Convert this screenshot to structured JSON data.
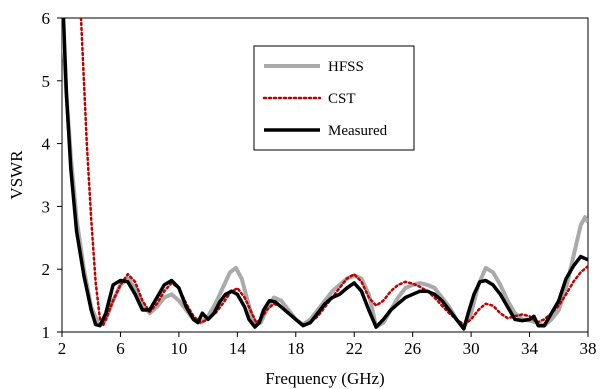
{
  "chart_data": {
    "type": "line",
    "xlabel": "Frequency (GHz)",
    "ylabel": "VSWR",
    "xlim": [
      2,
      38
    ],
    "ylim": [
      1,
      6
    ],
    "x_ticks": [
      2,
      6,
      10,
      14,
      18,
      22,
      26,
      30,
      34,
      38
    ],
    "y_ticks": [
      1,
      2,
      3,
      4,
      5,
      6
    ],
    "grid": false,
    "legend": "upper-center",
    "series": [
      {
        "name": "HFSS",
        "color": "#aaaaaa",
        "style": "solid",
        "points": [
          [
            2.0,
            6.0
          ],
          [
            2.3,
            4.8
          ],
          [
            2.6,
            3.8
          ],
          [
            3.0,
            2.8
          ],
          [
            3.5,
            2.0
          ],
          [
            4.0,
            1.4
          ],
          [
            4.5,
            1.12
          ],
          [
            5.0,
            1.2
          ],
          [
            5.5,
            1.5
          ],
          [
            6.0,
            1.75
          ],
          [
            6.5,
            1.85
          ],
          [
            7.0,
            1.7
          ],
          [
            7.5,
            1.45
          ],
          [
            8.0,
            1.3
          ],
          [
            8.5,
            1.4
          ],
          [
            9.0,
            1.55
          ],
          [
            9.5,
            1.6
          ],
          [
            10.0,
            1.5
          ],
          [
            10.5,
            1.35
          ],
          [
            11.0,
            1.2
          ],
          [
            11.5,
            1.15
          ],
          [
            12.0,
            1.25
          ],
          [
            12.5,
            1.45
          ],
          [
            13.0,
            1.7
          ],
          [
            13.5,
            1.95
          ],
          [
            13.9,
            2.02
          ],
          [
            14.3,
            1.85
          ],
          [
            14.7,
            1.5
          ],
          [
            15.0,
            1.25
          ],
          [
            15.3,
            1.12
          ],
          [
            15.6,
            1.15
          ],
          [
            16.0,
            1.35
          ],
          [
            16.5,
            1.55
          ],
          [
            17.0,
            1.5
          ],
          [
            17.5,
            1.35
          ],
          [
            18.0,
            1.2
          ],
          [
            18.5,
            1.12
          ],
          [
            19.0,
            1.2
          ],
          [
            19.5,
            1.35
          ],
          [
            20.0,
            1.5
          ],
          [
            20.5,
            1.65
          ],
          [
            21.0,
            1.75
          ],
          [
            21.5,
            1.85
          ],
          [
            22.0,
            1.9
          ],
          [
            22.5,
            1.85
          ],
          [
            23.0,
            1.6
          ],
          [
            23.3,
            1.3
          ],
          [
            23.5,
            1.08
          ],
          [
            24.0,
            1.15
          ],
          [
            24.5,
            1.35
          ],
          [
            25.0,
            1.55
          ],
          [
            25.5,
            1.7
          ],
          [
            26.0,
            1.75
          ],
          [
            26.5,
            1.78
          ],
          [
            27.0,
            1.75
          ],
          [
            27.5,
            1.7
          ],
          [
            28.0,
            1.55
          ],
          [
            28.5,
            1.4
          ],
          [
            29.0,
            1.2
          ],
          [
            29.5,
            1.07
          ],
          [
            30.0,
            1.3
          ],
          [
            30.5,
            1.75
          ],
          [
            31.0,
            2.02
          ],
          [
            31.5,
            1.95
          ],
          [
            32.0,
            1.75
          ],
          [
            32.5,
            1.5
          ],
          [
            33.0,
            1.3
          ],
          [
            33.5,
            1.2
          ],
          [
            34.0,
            1.18
          ],
          [
            34.5,
            1.15
          ],
          [
            35.0,
            1.1
          ],
          [
            35.5,
            1.2
          ],
          [
            36.0,
            1.35
          ],
          [
            36.5,
            1.7
          ],
          [
            37.0,
            2.2
          ],
          [
            37.5,
            2.7
          ],
          [
            37.8,
            2.83
          ],
          [
            38.0,
            2.75
          ]
        ]
      },
      {
        "name": "CST",
        "color": "#c00000",
        "style": "dotted",
        "points": [
          [
            3.3,
            6.0
          ],
          [
            3.5,
            5.0
          ],
          [
            3.7,
            4.0
          ],
          [
            4.0,
            2.8
          ],
          [
            4.3,
            1.8
          ],
          [
            4.6,
            1.2
          ],
          [
            4.8,
            1.1
          ],
          [
            5.0,
            1.2
          ],
          [
            5.5,
            1.5
          ],
          [
            6.0,
            1.75
          ],
          [
            6.5,
            1.92
          ],
          [
            7.0,
            1.8
          ],
          [
            7.5,
            1.5
          ],
          [
            8.0,
            1.32
          ],
          [
            8.5,
            1.45
          ],
          [
            9.0,
            1.65
          ],
          [
            9.5,
            1.78
          ],
          [
            10.0,
            1.7
          ],
          [
            10.5,
            1.45
          ],
          [
            11.0,
            1.25
          ],
          [
            11.5,
            1.15
          ],
          [
            12.0,
            1.2
          ],
          [
            12.5,
            1.3
          ],
          [
            13.0,
            1.45
          ],
          [
            13.5,
            1.62
          ],
          [
            14.0,
            1.7
          ],
          [
            14.5,
            1.55
          ],
          [
            15.0,
            1.3
          ],
          [
            15.3,
            1.15
          ],
          [
            15.6,
            1.2
          ],
          [
            16.0,
            1.35
          ],
          [
            16.5,
            1.45
          ],
          [
            17.0,
            1.4
          ],
          [
            17.5,
            1.3
          ],
          [
            18.0,
            1.2
          ],
          [
            18.5,
            1.12
          ],
          [
            19.0,
            1.15
          ],
          [
            19.5,
            1.25
          ],
          [
            20.0,
            1.4
          ],
          [
            20.5,
            1.55
          ],
          [
            21.0,
            1.7
          ],
          [
            21.5,
            1.85
          ],
          [
            22.0,
            1.92
          ],
          [
            22.5,
            1.8
          ],
          [
            23.0,
            1.55
          ],
          [
            23.5,
            1.42
          ],
          [
            24.0,
            1.5
          ],
          [
            24.5,
            1.65
          ],
          [
            25.0,
            1.75
          ],
          [
            25.5,
            1.8
          ],
          [
            26.0,
            1.77
          ],
          [
            26.5,
            1.72
          ],
          [
            27.0,
            1.65
          ],
          [
            27.5,
            1.55
          ],
          [
            28.0,
            1.42
          ],
          [
            28.5,
            1.3
          ],
          [
            29.0,
            1.2
          ],
          [
            29.5,
            1.12
          ],
          [
            30.0,
            1.2
          ],
          [
            30.5,
            1.35
          ],
          [
            31.0,
            1.45
          ],
          [
            31.5,
            1.42
          ],
          [
            32.0,
            1.3
          ],
          [
            32.5,
            1.22
          ],
          [
            33.0,
            1.25
          ],
          [
            33.5,
            1.28
          ],
          [
            34.0,
            1.25
          ],
          [
            34.5,
            1.15
          ],
          [
            35.0,
            1.2
          ],
          [
            35.5,
            1.3
          ],
          [
            36.0,
            1.42
          ],
          [
            36.5,
            1.6
          ],
          [
            37.0,
            1.8
          ],
          [
            37.5,
            1.95
          ],
          [
            38.0,
            2.05
          ]
        ]
      },
      {
        "name": "Measured",
        "color": "#000000",
        "style": "solid",
        "points": [
          [
            2.1,
            6.0
          ],
          [
            2.3,
            4.8
          ],
          [
            2.6,
            3.6
          ],
          [
            3.0,
            2.6
          ],
          [
            3.5,
            1.9
          ],
          [
            4.0,
            1.35
          ],
          [
            4.3,
            1.12
          ],
          [
            4.6,
            1.1
          ],
          [
            5.0,
            1.3
          ],
          [
            5.5,
            1.75
          ],
          [
            6.0,
            1.82
          ],
          [
            6.5,
            1.8
          ],
          [
            7.0,
            1.6
          ],
          [
            7.5,
            1.35
          ],
          [
            8.0,
            1.35
          ],
          [
            8.5,
            1.55
          ],
          [
            9.0,
            1.75
          ],
          [
            9.5,
            1.82
          ],
          [
            10.0,
            1.7
          ],
          [
            10.5,
            1.4
          ],
          [
            11.0,
            1.2
          ],
          [
            11.3,
            1.15
          ],
          [
            11.6,
            1.3
          ],
          [
            12.0,
            1.2
          ],
          [
            12.4,
            1.3
          ],
          [
            12.8,
            1.48
          ],
          [
            13.2,
            1.6
          ],
          [
            13.6,
            1.65
          ],
          [
            14.0,
            1.6
          ],
          [
            14.5,
            1.4
          ],
          [
            14.8,
            1.2
          ],
          [
            15.2,
            1.08
          ],
          [
            15.5,
            1.15
          ],
          [
            15.8,
            1.35
          ],
          [
            16.2,
            1.5
          ],
          [
            16.6,
            1.48
          ],
          [
            17.0,
            1.4
          ],
          [
            17.5,
            1.3
          ],
          [
            18.0,
            1.2
          ],
          [
            18.5,
            1.1
          ],
          [
            19.0,
            1.15
          ],
          [
            19.5,
            1.3
          ],
          [
            20.0,
            1.45
          ],
          [
            20.5,
            1.55
          ],
          [
            21.0,
            1.6
          ],
          [
            21.5,
            1.7
          ],
          [
            22.0,
            1.78
          ],
          [
            22.5,
            1.65
          ],
          [
            23.0,
            1.35
          ],
          [
            23.5,
            1.08
          ],
          [
            24.0,
            1.2
          ],
          [
            24.5,
            1.35
          ],
          [
            25.0,
            1.45
          ],
          [
            25.5,
            1.55
          ],
          [
            26.0,
            1.6
          ],
          [
            26.5,
            1.65
          ],
          [
            27.0,
            1.65
          ],
          [
            27.5,
            1.6
          ],
          [
            28.0,
            1.5
          ],
          [
            28.5,
            1.35
          ],
          [
            29.0,
            1.2
          ],
          [
            29.5,
            1.05
          ],
          [
            29.8,
            1.3
          ],
          [
            30.2,
            1.6
          ],
          [
            30.6,
            1.8
          ],
          [
            31.0,
            1.82
          ],
          [
            31.5,
            1.75
          ],
          [
            32.0,
            1.6
          ],
          [
            32.5,
            1.4
          ],
          [
            33.0,
            1.2
          ],
          [
            33.5,
            1.18
          ],
          [
            34.0,
            1.2
          ],
          [
            34.3,
            1.25
          ],
          [
            34.6,
            1.1
          ],
          [
            35.0,
            1.1
          ],
          [
            35.5,
            1.3
          ],
          [
            36.0,
            1.5
          ],
          [
            36.5,
            1.85
          ],
          [
            37.0,
            2.05
          ],
          [
            37.5,
            2.2
          ],
          [
            38.0,
            2.15
          ]
        ]
      }
    ]
  }
}
